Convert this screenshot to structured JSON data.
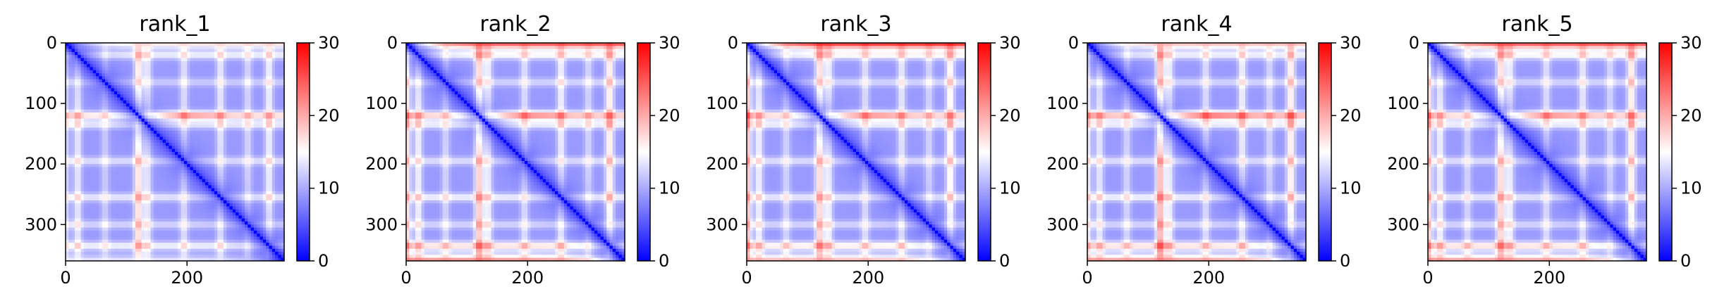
{
  "chart_data": [
    {
      "type": "heatmap",
      "title": "rank_1",
      "xticks": [
        0,
        200
      ],
      "yticks": [
        0,
        100,
        200,
        300
      ],
      "xlim": [
        0,
        360
      ],
      "ylim": [
        360,
        0
      ],
      "colorbar": {
        "ticks": [
          0,
          10,
          20,
          30
        ],
        "range": [
          0,
          30
        ]
      },
      "colormap": "bwr",
      "diagonal_value": 0,
      "band_positions": [
        0,
        20,
        65,
        120,
        135,
        195,
        255,
        300,
        335
      ],
      "band_strength": [
        0.6,
        0.8,
        0.5,
        1.4,
        0.8,
        0.7,
        0.8,
        0.6,
        0.9
      ],
      "top_edge_value": 18,
      "bottom_edge_value": 15
    },
    {
      "type": "heatmap",
      "title": "rank_2",
      "xticks": [
        0,
        200
      ],
      "yticks": [
        0,
        100,
        200,
        300
      ],
      "xlim": [
        0,
        360
      ],
      "ylim": [
        360,
        0
      ],
      "colorbar": {
        "ticks": [
          0,
          10,
          20,
          30
        ],
        "range": [
          0,
          30
        ]
      },
      "colormap": "bwr",
      "diagonal_value": 0,
      "band_positions": [
        0,
        20,
        65,
        120,
        135,
        195,
        255,
        300,
        335
      ],
      "band_strength": [
        1.4,
        0.9,
        0.6,
        1.6,
        0.9,
        0.7,
        0.9,
        0.6,
        1.3
      ],
      "top_edge_value": 27,
      "bottom_edge_value": 25
    },
    {
      "type": "heatmap",
      "title": "rank_3",
      "xticks": [
        0,
        200
      ],
      "yticks": [
        0,
        100,
        200,
        300
      ],
      "xlim": [
        0,
        360
      ],
      "ylim": [
        360,
        0
      ],
      "colorbar": {
        "ticks": [
          0,
          10,
          20,
          30
        ],
        "range": [
          0,
          30
        ]
      },
      "colormap": "bwr",
      "diagonal_value": 0,
      "band_positions": [
        0,
        20,
        65,
        120,
        135,
        195,
        255,
        300,
        335
      ],
      "band_strength": [
        1.7,
        0.9,
        0.6,
        1.5,
        0.9,
        0.7,
        0.8,
        0.6,
        1.2
      ],
      "top_edge_value": 29,
      "bottom_edge_value": 22
    },
    {
      "type": "heatmap",
      "title": "rank_4",
      "xticks": [
        0,
        200
      ],
      "yticks": [
        0,
        100,
        200,
        300
      ],
      "xlim": [
        0,
        360
      ],
      "ylim": [
        360,
        0
      ],
      "colorbar": {
        "ticks": [
          0,
          10,
          20,
          30
        ],
        "range": [
          0,
          30
        ]
      },
      "colormap": "bwr",
      "diagonal_value": 0,
      "band_positions": [
        0,
        20,
        65,
        120,
        135,
        195,
        255,
        300,
        335
      ],
      "band_strength": [
        0.9,
        0.8,
        0.6,
        1.8,
        0.9,
        0.7,
        0.9,
        0.6,
        1.3
      ],
      "top_edge_value": 20,
      "bottom_edge_value": 24
    },
    {
      "type": "heatmap",
      "title": "rank_5",
      "xticks": [
        0,
        200
      ],
      "yticks": [
        0,
        100,
        200,
        300
      ],
      "xlim": [
        0,
        360
      ],
      "ylim": [
        360,
        0
      ],
      "colorbar": {
        "ticks": [
          0,
          10,
          20,
          30
        ],
        "range": [
          0,
          30
        ]
      },
      "colormap": "bwr",
      "diagonal_value": 0,
      "band_positions": [
        0,
        20,
        65,
        120,
        135,
        195,
        255,
        300,
        335
      ],
      "band_strength": [
        1.5,
        0.9,
        0.6,
        1.5,
        0.9,
        0.7,
        0.8,
        0.6,
        1.3
      ],
      "top_edge_value": 27,
      "bottom_edge_value": 24
    }
  ]
}
